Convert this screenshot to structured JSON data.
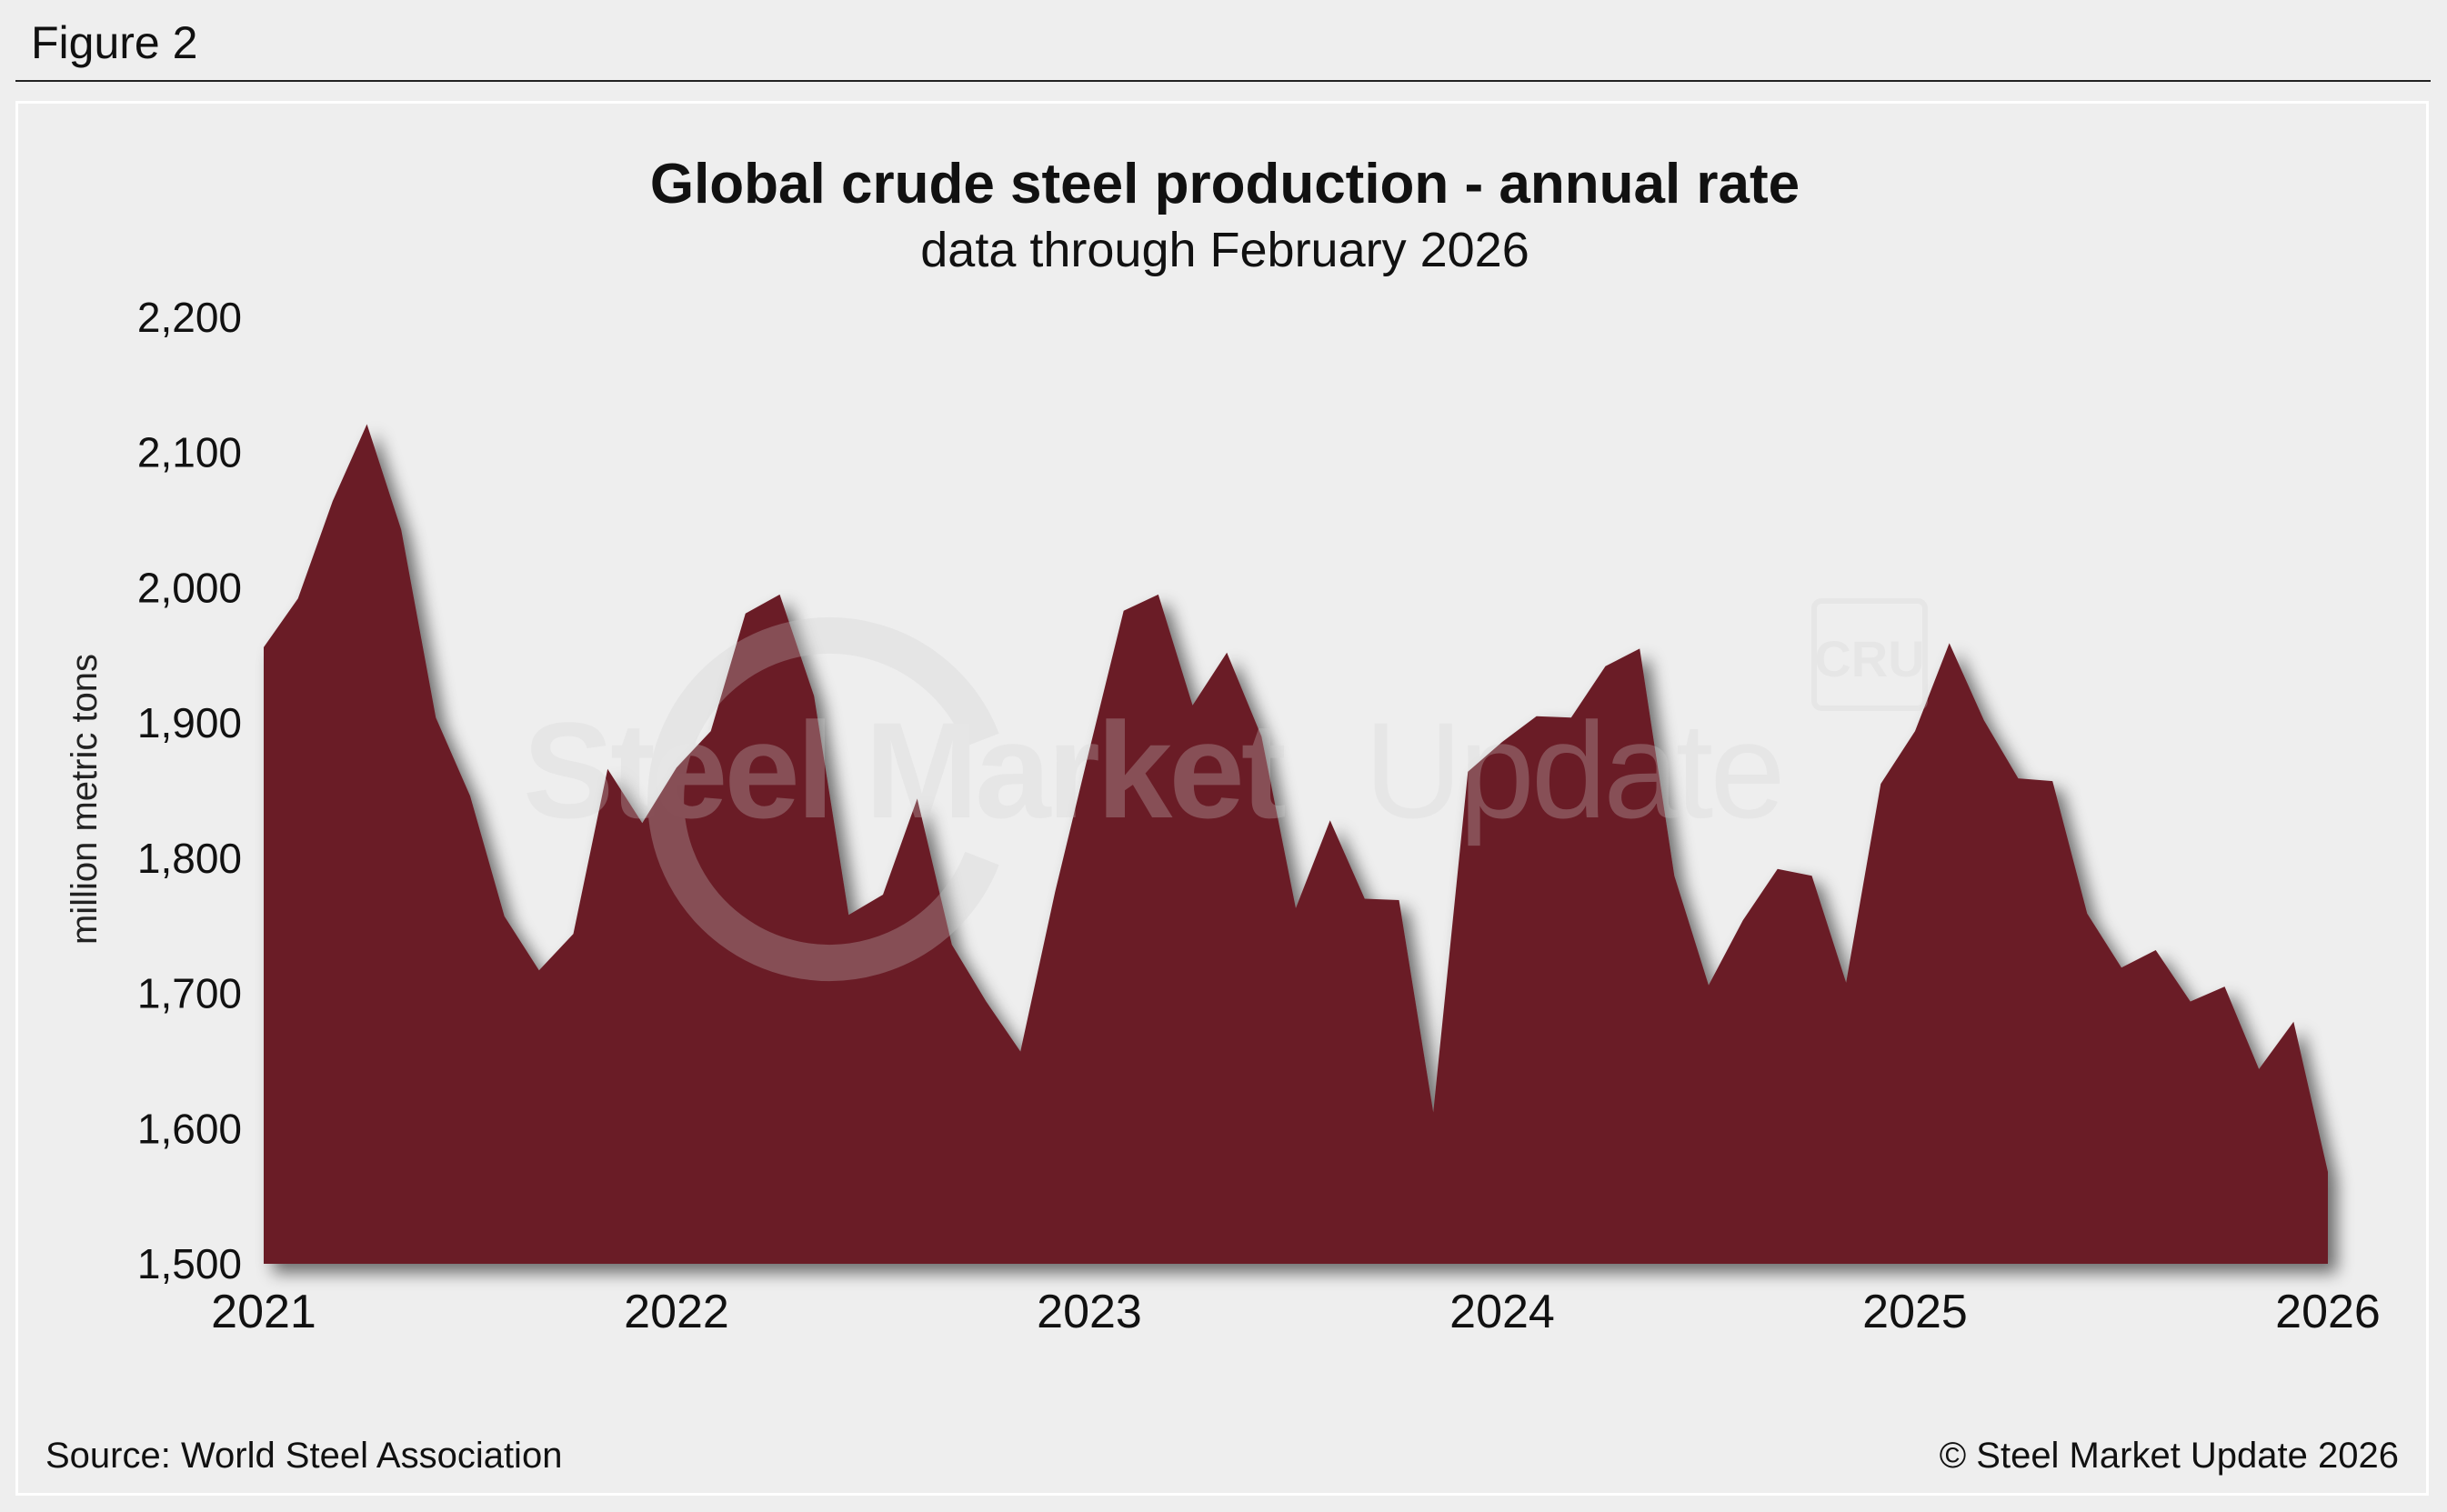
{
  "figure_label": "Figure 2",
  "source": "Source: World Steel Association",
  "copyright": "© Steel Market Update 2026",
  "watermark": {
    "text_bold": "Steel Market",
    "text_light": "Update",
    "logo_text": "CRU"
  },
  "colors": {
    "area_fill": "#6b1f27",
    "background": "#eeeeee"
  },
  "chart_data": {
    "type": "area",
    "title": "Global crude steel production - annual rate",
    "subtitle": "data through February 2026",
    "xlabel": "",
    "ylabel": "million metric tons",
    "ylim": [
      1500,
      2200
    ],
    "yticks": [
      {
        "value": 2200,
        "label": "2,200"
      },
      {
        "value": 2100,
        "label": "2,100"
      },
      {
        "value": 2000,
        "label": "2,000"
      },
      {
        "value": 1900,
        "label": "1,900"
      },
      {
        "value": 1800,
        "label": "1,800"
      },
      {
        "value": 1700,
        "label": "1,700"
      },
      {
        "value": 1600,
        "label": "1,600"
      },
      {
        "value": 1500,
        "label": "1,500"
      }
    ],
    "xlim": [
      2021.0,
      2026.0
    ],
    "xticks": [
      {
        "value": 2021,
        "label": "2021"
      },
      {
        "value": 2022,
        "label": "2022"
      },
      {
        "value": 2023,
        "label": "2023"
      },
      {
        "value": 2024,
        "label": "2024"
      },
      {
        "value": 2025,
        "label": "2025"
      },
      {
        "value": 2026,
        "label": "2026"
      }
    ],
    "grid": false,
    "legend": "none",
    "series": [
      {
        "name": "Global crude steel production (annual rate)",
        "x": [
          2021.0,
          2021.083,
          2021.167,
          2021.25,
          2021.333,
          2021.417,
          2021.5,
          2021.583,
          2021.667,
          2021.75,
          2021.833,
          2021.917,
          2022.0,
          2022.083,
          2022.167,
          2022.25,
          2022.333,
          2022.417,
          2022.5,
          2022.583,
          2022.667,
          2022.75,
          2022.833,
          2022.917,
          2023.0,
          2023.083,
          2023.167,
          2023.25,
          2023.333,
          2023.417,
          2023.5,
          2023.583,
          2023.667,
          2023.75,
          2023.833,
          2023.917,
          2024.0,
          2024.083,
          2024.167,
          2024.25,
          2024.333,
          2024.417,
          2024.5,
          2024.583,
          2024.667,
          2024.75,
          2024.833,
          2024.917,
          2025.0,
          2025.083,
          2025.167,
          2025.25,
          2025.333,
          2025.417,
          2025.5,
          2025.583,
          2025.667,
          2025.75,
          2025.833,
          2025.917,
          2026.0
        ],
        "values": [
          1956,
          1992,
          2064,
          2121,
          2043,
          1904,
          1846,
          1757,
          1717,
          1744,
          1866,
          1826,
          1867,
          1894,
          1981,
          1995,
          1920,
          1758,
          1773,
          1844,
          1736,
          1694,
          1657,
          1775,
          1880,
          1983,
          1995,
          1913,
          1952,
          1890,
          1763,
          1828,
          1770,
          1769,
          1612,
          1864,
          1886,
          1905,
          1904,
          1942,
          1955,
          1787,
          1706,
          1754,
          1792,
          1787,
          1708,
          1855,
          1894,
          1959,
          1902,
          1859,
          1857,
          1759,
          1719,
          1732,
          1694,
          1705,
          1644,
          1679,
          1568
        ]
      }
    ]
  }
}
